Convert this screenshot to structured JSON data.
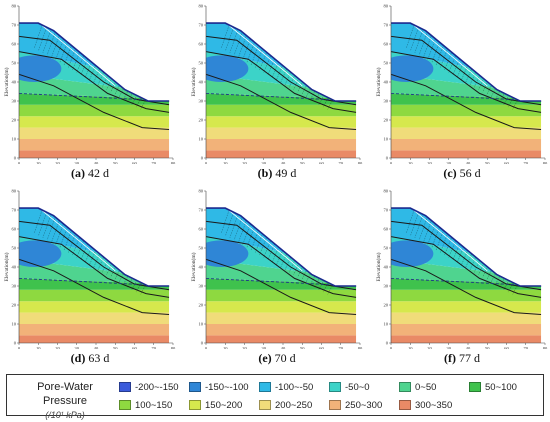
{
  "chart_data": {
    "type": "heatmap",
    "subtype": "filled-contour slope cross-section",
    "xlabel": "Length(m)",
    "ylabel": "Elevation(m)",
    "xlim": [
      0,
      80
    ],
    "ylim": [
      0,
      80
    ],
    "xticks": [
      "0",
      "10",
      "20",
      "30",
      "40",
      "50",
      "60",
      "70",
      "80"
    ],
    "yticks": [
      "0",
      "10",
      "20",
      "30",
      "40",
      "50",
      "60",
      "70",
      "80"
    ],
    "slope_profile": [
      [
        0,
        71
      ],
      [
        10,
        71
      ],
      [
        18,
        67
      ],
      [
        55,
        36
      ],
      [
        67,
        30
      ],
      [
        78,
        30
      ],
      [
        78,
        0
      ],
      [
        0,
        0
      ]
    ],
    "pressure_bands": [
      {
        "boundary_y0": 0,
        "boundary_y78": 0,
        "range": "300~350"
      },
      {
        "boundary_y0": 4,
        "boundary_y78": 4,
        "range": "250~300"
      },
      {
        "boundary_y0": 10,
        "boundary_y78": 10,
        "range": "200~250"
      },
      {
        "boundary_y0": 16,
        "boundary_y78": 16,
        "range": "150~200"
      },
      {
        "boundary_y0": 22,
        "boundary_y78": 22,
        "range": "100~150"
      },
      {
        "boundary_y0": 28,
        "boundary_y78": 28,
        "range": "50~100"
      },
      {
        "boundary_y0": 34,
        "boundary_y78": 31,
        "range": "0~50"
      },
      {
        "boundary_y0": 44,
        "boundary_y78": 34,
        "range": "-50~0"
      },
      {
        "boundary_y0": 56,
        "boundary_y78": 40,
        "range": "-100~-50"
      }
    ],
    "panels": [
      {
        "label": "(a)",
        "time": "42 d"
      },
      {
        "label": "(b)",
        "time": "49 d"
      },
      {
        "label": "(c)",
        "time": "56 d"
      },
      {
        "label": "(d)",
        "time": "63 d"
      },
      {
        "label": "(e)",
        "time": "70 d"
      },
      {
        "label": "(f)",
        "time": "77 d"
      }
    ],
    "legend": {
      "title": "Pore-Water Pressure",
      "unit": "(/10¹ kPa)",
      "entries": [
        {
          "label": "-200~-150",
          "color": "#3b5bdb"
        },
        {
          "label": "-150~-100",
          "color": "#2f86d6"
        },
        {
          "label": "-100~-50",
          "color": "#2fb9e6"
        },
        {
          "label": "-50~0",
          "color": "#3cd3c8"
        },
        {
          "label": "0~50",
          "color": "#4fd48f"
        },
        {
          "label": "50~100",
          "color": "#3fc24d"
        },
        {
          "label": "100~150",
          "color": "#8ed940"
        },
        {
          "label": "150~200",
          "color": "#d6e84d"
        },
        {
          "label": "200~250",
          "color": "#f0dc7a"
        },
        {
          "label": "250~300",
          "color": "#f2b279"
        },
        {
          "label": "300~350",
          "color": "#e98a66"
        }
      ]
    },
    "grid": false,
    "legend_position": "bottom"
  }
}
